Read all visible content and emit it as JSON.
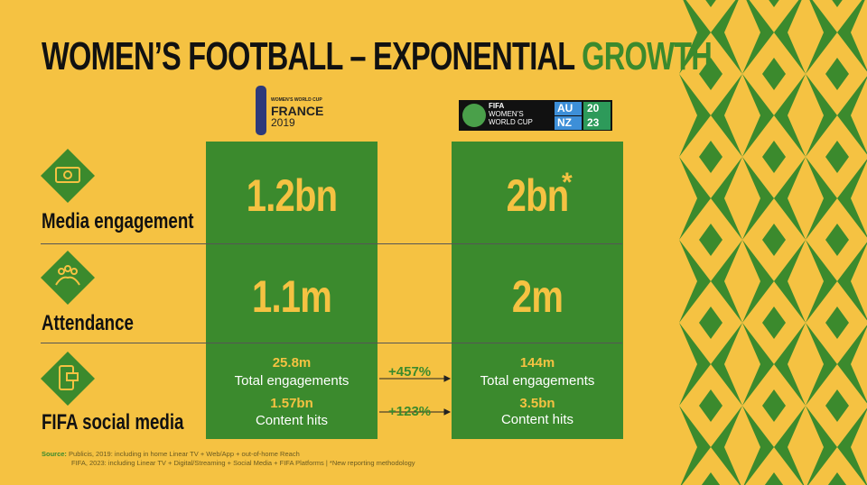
{
  "title": {
    "main": "WOMEN’S FOOTBALL – EXPONENTIAL",
    "accent": "GROWTH"
  },
  "logos": {
    "france": {
      "line1": "WOMEN’S WORLD CUP",
      "line2": "FRANCE",
      "line3": "2019"
    },
    "aunz": {
      "line1": "FIFA",
      "line2": "WOMEN’S",
      "line3": "WORLD CUP",
      "au": "AU",
      "nz": "NZ",
      "y1": "20",
      "y2": "23"
    }
  },
  "rows": [
    {
      "label": "Media engagement",
      "value_2019": "1.2bn",
      "value_2023": "2bn",
      "note": "*"
    },
    {
      "label": "Attendance",
      "value_2019": "1.1m",
      "value_2023": "2m"
    },
    {
      "label": "FIFA social media",
      "items": [
        {
          "value_2019": "25.8m",
          "value_2023": "144m",
          "caption": "Total engagements",
          "growth": "+457%"
        },
        {
          "value_2019": "1.57bn",
          "value_2023": "3.5bn",
          "caption": "Content hits",
          "growth": "+123%"
        }
      ]
    }
  ],
  "source": {
    "label": "Source:",
    "line1": "Publicis, 2019: including in home Linear TV + Web/App + out-of-home Reach",
    "line2": "FIFA, 2023: including Linear TV + Digital/Streaming + Social Media + FIFA Platforms | *New reporting methodology"
  }
}
